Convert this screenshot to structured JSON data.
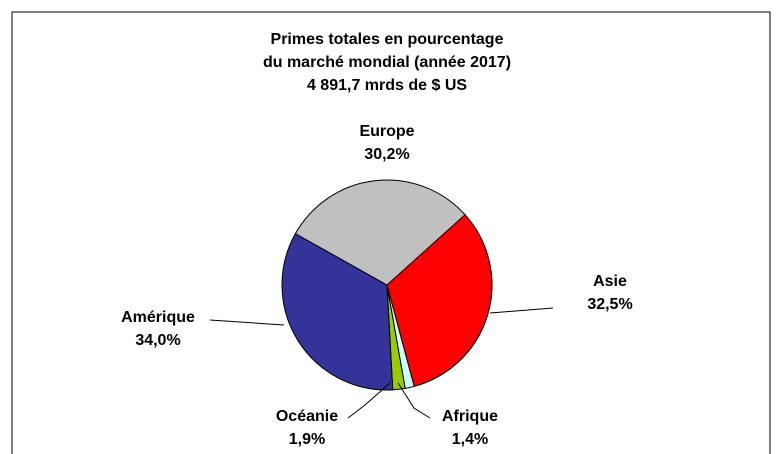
{
  "chart_data": {
    "type": "pie",
    "title": [
      "Primes totales en pourcentage",
      "du marché mondial (année 2017)",
      "4 891,7 mrds de $ US"
    ],
    "categories": [
      "Asie",
      "Afrique",
      "Océanie",
      "Amérique",
      "Europe"
    ],
    "values": [
      32.5,
      1.4,
      1.9,
      34.0,
      30.2
    ],
    "value_labels": [
      "32,5%",
      "1,4%",
      "1,9%",
      "34,0%",
      "30,2%"
    ],
    "colors": [
      "#ff0000",
      "#ccffff",
      "#99cc00",
      "#333399",
      "#c0c0c0"
    ]
  }
}
